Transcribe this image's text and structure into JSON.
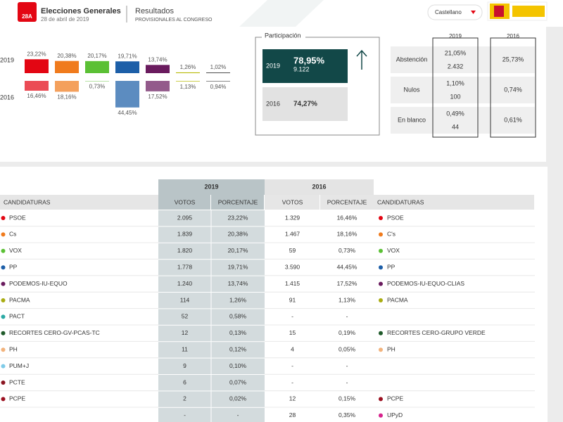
{
  "header": {
    "logo": "28A",
    "title": "Elecciones Generales",
    "date": "28 de abril de 2019",
    "section": "Resultados",
    "subsection": "PROVISIONALES AL CONGRESO",
    "language": "Castellano"
  },
  "summary_bars": {
    "years": [
      "2019",
      "2016"
    ],
    "bars": [
      {
        "color": "#e30613",
        "v2019": 23.22,
        "l2019": "23,22%",
        "v2016": 16.46,
        "l2016": "16,46%"
      },
      {
        "color": "#f07b1d",
        "v2019": 20.38,
        "l2019": "20,38%",
        "v2016": 18.16,
        "l2016": "18,16%"
      },
      {
        "color": "#5bc035",
        "v2019": 20.17,
        "l2019": "20,17%",
        "v2016": 0.73,
        "l2016": "0,73%"
      },
      {
        "color": "#1d5fa8",
        "v2019": 19.71,
        "l2019": "19,71%",
        "v2016": 44.45,
        "l2016": "44,45%"
      },
      {
        "color": "#6a1b5e",
        "v2019": 13.74,
        "l2019": "13,74%",
        "v2016": 17.52,
        "l2016": "17,52%"
      },
      {
        "color": "#b5b800",
        "v2019": 1.26,
        "l2019": "1,26%",
        "v2016": 1.13,
        "l2016": "1,13%"
      },
      {
        "color": "#333333",
        "v2019": 1.02,
        "l2019": "1,02%",
        "v2016": 0.94,
        "l2016": "0,94%"
      }
    ]
  },
  "participation": {
    "title": "Participación",
    "rows": [
      {
        "year": "2019",
        "percent": "78,95%",
        "votes": "9.122"
      },
      {
        "year": "2016",
        "percent": "74,27%"
      }
    ]
  },
  "other": {
    "years": [
      "2019",
      "2016"
    ],
    "rows": [
      {
        "label": "Abstención",
        "pct2019": "21,05%",
        "votes2019": "2.432",
        "pct2016": "25,73%"
      },
      {
        "label": "Nulos",
        "pct2019": "1,10%",
        "votes2019": "100",
        "pct2016": "0,74%"
      },
      {
        "label": "En blanco",
        "pct2019": "0,49%",
        "votes2019": "44",
        "pct2016": "0,61%"
      }
    ]
  },
  "table": {
    "groups": [
      "2019",
      "2016"
    ],
    "columns": [
      "CANDIDATURAS",
      "VOTOS",
      "PORCENTAJE",
      "VOTOS",
      "PORCENTAJE",
      "CANDIDATURAS"
    ],
    "rows": [
      {
        "party": "PSOE",
        "color": "#e30613",
        "votes2019": "2.095",
        "pct2019": "23,22%",
        "votes2016": "1.329",
        "pct2016": "16,46%",
        "party2016": "PSOE",
        "color2016": "#e30613"
      },
      {
        "party": "Cs",
        "color": "#f07b1d",
        "votes2019": "1.839",
        "pct2019": "20,38%",
        "votes2016": "1.467",
        "pct2016": "18,16%",
        "party2016": "C's",
        "color2016": "#f07b1d"
      },
      {
        "party": "VOX",
        "color": "#5bc035",
        "votes2019": "1.820",
        "pct2019": "20,17%",
        "votes2016": "59",
        "pct2016": "0,73%",
        "party2016": "VOX",
        "color2016": "#5bc035"
      },
      {
        "party": "PP",
        "color": "#1d5fa8",
        "votes2019": "1.778",
        "pct2019": "19,71%",
        "votes2016": "3.590",
        "pct2016": "44,45%",
        "party2016": "PP",
        "color2016": "#1d5fa8"
      },
      {
        "party": "PODEMOS-IU-EQUO",
        "color": "#6a1b5e",
        "votes2019": "1.240",
        "pct2019": "13,74%",
        "votes2016": "1.415",
        "pct2016": "17,52%",
        "party2016": "PODEMOS-IU-EQUO-CLIAS",
        "color2016": "#6a1b5e"
      },
      {
        "party": "PACMA",
        "color": "#a9ac12",
        "votes2019": "114",
        "pct2019": "1,26%",
        "votes2016": "91",
        "pct2016": "1,13%",
        "party2016": "PACMA",
        "color2016": "#a9ac12"
      },
      {
        "party": "PACT",
        "color": "#2aa9a4",
        "votes2019": "52",
        "pct2019": "0,58%",
        "votes2016": "-",
        "pct2016": "-",
        "party2016": null,
        "color2016": null
      },
      {
        "party": "RECORTES CERO-GV-PCAS-TC",
        "color": "#1f5a2a",
        "votes2019": "12",
        "pct2019": "0,13%",
        "votes2016": "15",
        "pct2016": "0,19%",
        "party2016": "RECORTES CERO-GRUPO VERDE",
        "color2016": "#1f5a2a"
      },
      {
        "party": "PH",
        "color": "#f2b37c",
        "votes2019": "11",
        "pct2019": "0,12%",
        "votes2016": "4",
        "pct2016": "0,05%",
        "party2016": "PH",
        "color2016": "#f2b37c"
      },
      {
        "party": "PUM+J",
        "color": "#7fcbe8",
        "votes2019": "9",
        "pct2019": "0,10%",
        "votes2016": "-",
        "pct2016": "-",
        "party2016": null,
        "color2016": null
      },
      {
        "party": "PCTE",
        "color": "#8a1420",
        "votes2019": "6",
        "pct2019": "0,07%",
        "votes2016": "-",
        "pct2016": "-",
        "party2016": null,
        "color2016": null
      },
      {
        "party": "PCPE",
        "color": "#9b1020",
        "votes2019": "2",
        "pct2019": "0,02%",
        "votes2016": "12",
        "pct2016": "0,15%",
        "party2016": "PCPE",
        "color2016": "#9b1020"
      },
      {
        "party": null,
        "color": null,
        "votes2019": "-",
        "pct2019": "-",
        "votes2016": "28",
        "pct2016": "0,35%",
        "party2016": "UPyD",
        "color2016": "#d6218c"
      }
    ]
  }
}
